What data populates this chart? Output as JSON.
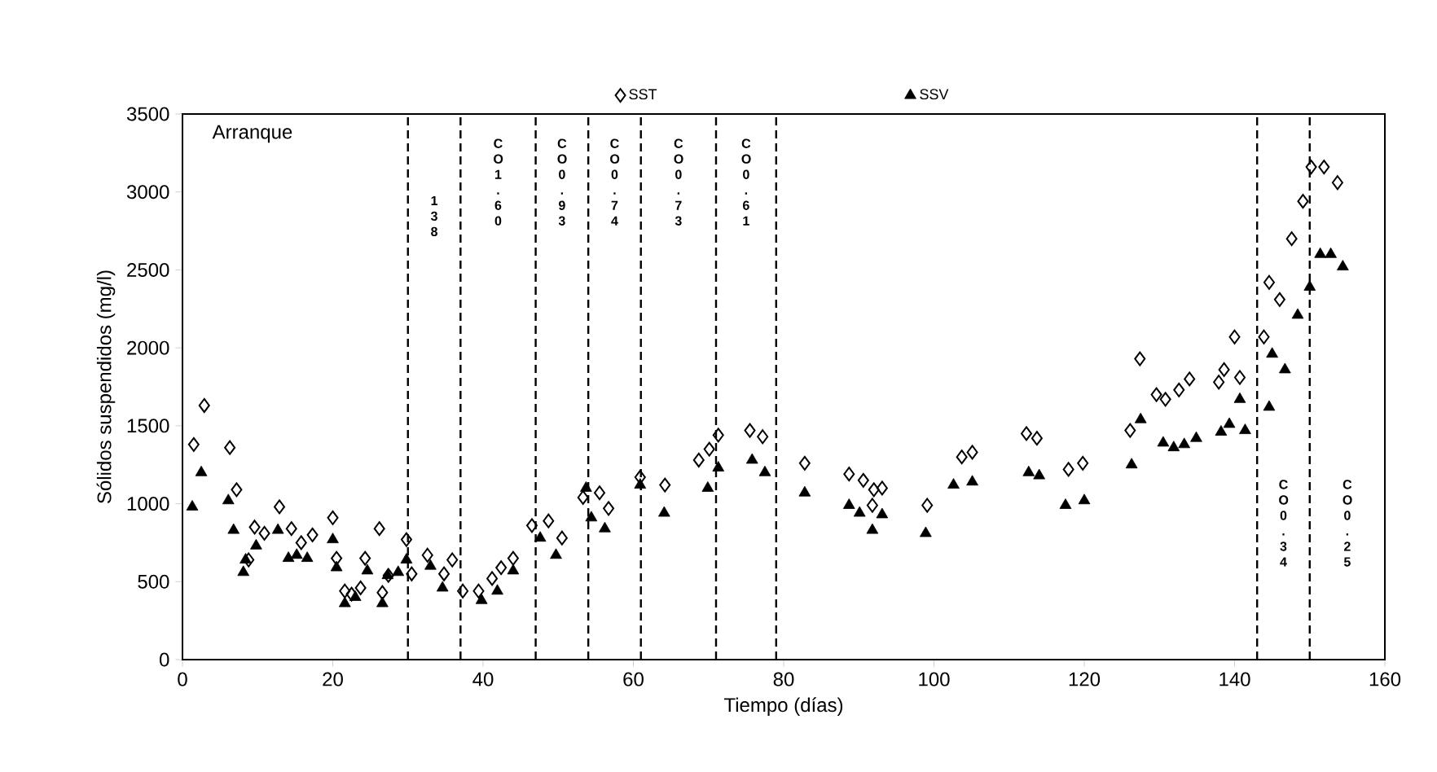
{
  "chart_data": {
    "type": "scatter",
    "xlabel": "Tiempo (días)",
    "ylabel": "Sólidos suspendidos (mg/l)",
    "xlim": [
      0,
      160
    ],
    "xticks": [
      0,
      20,
      40,
      60,
      80,
      100,
      120,
      140,
      160
    ],
    "ylim": [
      0,
      3500
    ],
    "yticks": [
      0,
      500,
      1000,
      1500,
      2000,
      2500,
      3000,
      3500
    ],
    "legend": "top",
    "series": [
      {
        "name": "SST",
        "color": "#000000",
        "marker": "diamond",
        "x": [
          1.5,
          2.9,
          6.3,
          7.2,
          8.8,
          9.6,
          10.9,
          12.9,
          14.5,
          15.8,
          17.3,
          20.0,
          20.5,
          21.6,
          22.5,
          23.7,
          24.3,
          26.2,
          26.6,
          27.4,
          29.8,
          30.5,
          32.6,
          34.8,
          35.9,
          37.3,
          39.4,
          41.2,
          42.4,
          44.0,
          46.5,
          48.7,
          50.5,
          53.3,
          55.5,
          56.7,
          60.9,
          64.2,
          68.7,
          70.1,
          71.3,
          75.5,
          77.2,
          82.8,
          88.7,
          90.6,
          92.0,
          93.1,
          91.8,
          99.1,
          103.7,
          105.1,
          112.3,
          113.7,
          117.9,
          119.8,
          127.4,
          126.1,
          129.6,
          130.8,
          132.6,
          134.0,
          137.9,
          138.6,
          140.7,
          140.0,
          143.9,
          144.6,
          146.0,
          147.6,
          149.1,
          150.2,
          151.9,
          153.7
        ],
        "values": [
          1380,
          1630,
          1360,
          1090,
          640,
          850,
          810,
          980,
          840,
          750,
          800,
          910,
          650,
          440,
          420,
          460,
          650,
          840,
          430,
          540,
          770,
          550,
          670,
          550,
          640,
          440,
          440,
          520,
          590,
          650,
          860,
          890,
          780,
          1040,
          1070,
          970,
          1170,
          1120,
          1280,
          1350,
          1440,
          1470,
          1430,
          1260,
          1190,
          1150,
          1090,
          1100,
          990,
          990,
          1300,
          1330,
          1450,
          1420,
          1220,
          1260,
          1930,
          1470,
          1700,
          1670,
          1730,
          1800,
          1780,
          1860,
          1810,
          2070,
          2070,
          2420,
          2310,
          2700,
          2940,
          3160,
          3160,
          3060
        ]
      },
      {
        "name": "SSV",
        "color": "#000000",
        "marker": "triangle",
        "x": [
          1.3,
          2.5,
          6.1,
          6.8,
          8.1,
          8.4,
          9.8,
          12.7,
          14.1,
          15.2,
          16.6,
          20.0,
          20.5,
          21.6,
          23.0,
          24.6,
          26.6,
          27.3,
          28.7,
          29.8,
          33.0,
          34.6,
          39.8,
          41.9,
          44.0,
          47.6,
          49.7,
          53.7,
          54.4,
          56.2,
          60.9,
          64.1,
          69.9,
          71.3,
          75.8,
          77.5,
          82.8,
          88.7,
          90.1,
          91.8,
          93.1,
          98.9,
          102.6,
          105.1,
          112.6,
          114.0,
          117.5,
          120.0,
          126.3,
          127.5,
          130.5,
          131.9,
          133.3,
          134.9,
          138.2,
          139.3,
          141.4,
          140.7,
          144.6,
          145.0,
          146.7,
          148.4,
          150.0,
          151.4,
          152.8,
          154.4
        ],
        "values": [
          980,
          1200,
          1020,
          830,
          560,
          640,
          730,
          830,
          650,
          670,
          650,
          770,
          590,
          360,
          400,
          570,
          360,
          540,
          560,
          640,
          600,
          460,
          380,
          440,
          570,
          780,
          670,
          1100,
          910,
          840,
          1120,
          940,
          1100,
          1230,
          1280,
          1200,
          1070,
          990,
          940,
          830,
          930,
          810,
          1120,
          1140,
          1200,
          1180,
          990,
          1020,
          1250,
          1540,
          1390,
          1360,
          1380,
          1420,
          1460,
          1510,
          1470,
          1670,
          1620,
          1960,
          1860,
          2210,
          2390,
          2600,
          2600,
          2520
        ]
      }
    ],
    "ref_lines": [
      {
        "axis": "x",
        "value": 30,
        "color": "#000000",
        "line_style": "dashed"
      },
      {
        "axis": "x",
        "value": 37,
        "color": "#000000",
        "line_style": "dashed"
      },
      {
        "axis": "x",
        "value": 47,
        "color": "#000000",
        "line_style": "dashed"
      },
      {
        "axis": "x",
        "value": 54,
        "color": "#000000",
        "line_style": "dashed"
      },
      {
        "axis": "x",
        "value": 61,
        "color": "#000000",
        "line_style": "dashed"
      },
      {
        "axis": "x",
        "value": 71,
        "color": "#000000",
        "line_style": "dashed"
      },
      {
        "axis": "x",
        "value": 79,
        "color": "#000000",
        "line_style": "dashed"
      },
      {
        "axis": "x",
        "value": 143,
        "color": "#000000",
        "line_style": "dashed"
      },
      {
        "axis": "x",
        "value": 150,
        "color": "#000000",
        "line_style": "dashed"
      }
    ],
    "annotations": [
      "Arranque",
      "1 3 8",
      "C O 1 . 6 0",
      "C O 0 . 9 3",
      "C O 0 . 7 4",
      "C O 0 . 7 3",
      "C O 0 . 6 1",
      "C O 0 . 3 4",
      "C O 0 . 2 5"
    ]
  }
}
